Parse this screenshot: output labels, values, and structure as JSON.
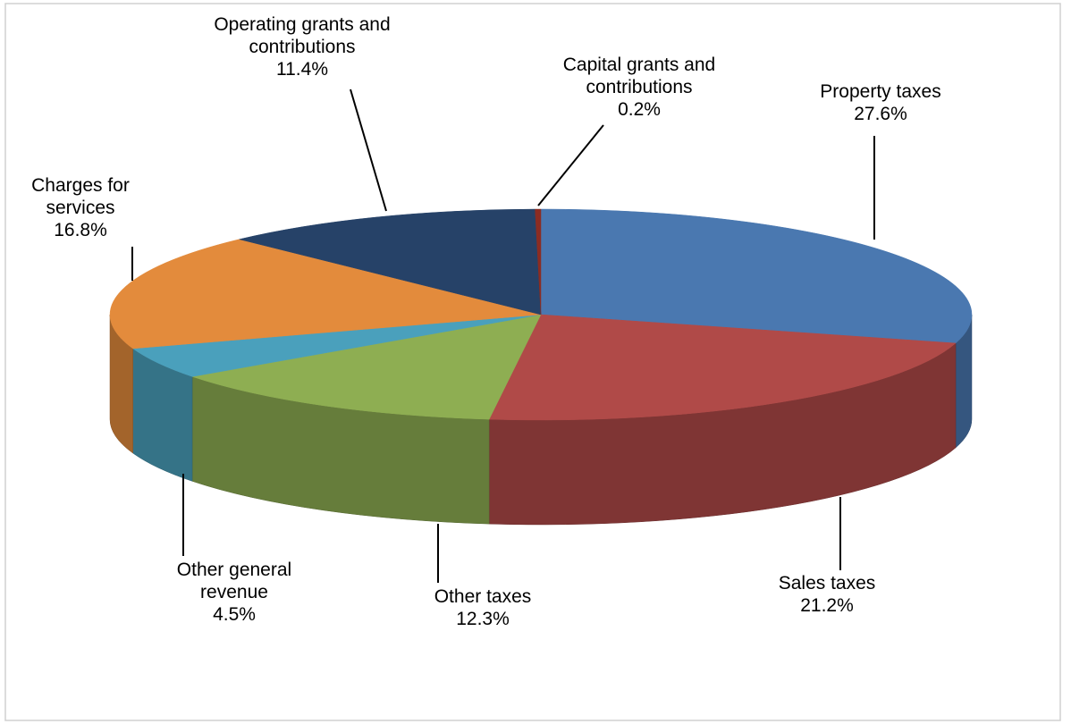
{
  "chart_data": {
    "type": "pie3d",
    "categories": [
      "Property taxes",
      "Sales taxes",
      "Other taxes",
      "Other general revenue",
      "Charges for services",
      "Operating grants and contributions",
      "Capital grants and contributions"
    ],
    "values": [
      27.6,
      21.2,
      12.3,
      4.5,
      16.8,
      11.4,
      0.2
    ],
    "value_labels": [
      "27.6%",
      "21.2%",
      "12.3%",
      "4.5%",
      "16.8%",
      "11.4%",
      "0.2%"
    ],
    "colors": [
      "#4a78b0",
      "#b04a48",
      "#8eae52",
      "#4aa0bc",
      "#e38b3c",
      "#264268",
      "#8b2c22"
    ]
  }
}
